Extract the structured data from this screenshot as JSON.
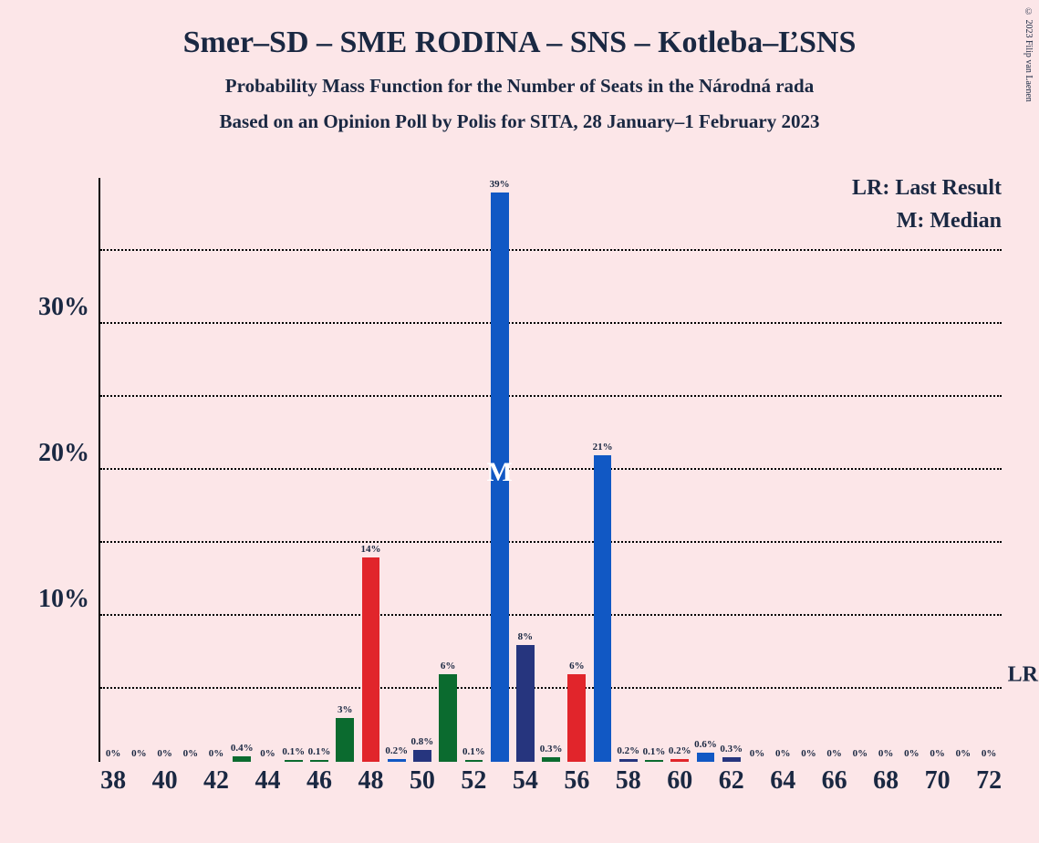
{
  "copyright": "© 2023 Filip van Laenen",
  "title": "Smer–SD – SME RODINA – SNS – Kotleba–ĽSNS",
  "subtitle1": "Probability Mass Function for the Number of Seats in the Národná rada",
  "subtitle2": "Based on an Opinion Poll by Polis for SITA, 28 January–1 February 2023",
  "chart": {
    "type": "bar",
    "background_color": "#fce6e8",
    "text_color": "#1a2842",
    "colors": {
      "green": "#0b6b2f",
      "red": "#e1252b",
      "blue": "#1158c4",
      "navy": "#26357e"
    },
    "ylim": [
      0,
      40
    ],
    "ytick_step": 5,
    "y_major_ticks": [
      10,
      20,
      30
    ],
    "y_gridlines": [
      5,
      10,
      15,
      20,
      25,
      30,
      35
    ],
    "lr_gridline_value": 5,
    "annotations": {
      "lr": "LR: Last Result",
      "m": "M: Median",
      "lr_short": "LR",
      "median_marker": "M"
    },
    "x_categories": [
      38,
      39,
      40,
      41,
      42,
      43,
      44,
      45,
      46,
      47,
      48,
      49,
      50,
      51,
      52,
      53,
      54,
      55,
      56,
      57,
      58,
      59,
      60,
      61,
      62,
      63,
      64,
      65,
      66,
      67,
      68,
      69,
      70,
      71,
      72
    ],
    "x_visible_labels": [
      38,
      40,
      42,
      44,
      46,
      48,
      50,
      52,
      54,
      56,
      58,
      60,
      62,
      64,
      66,
      68,
      70,
      72
    ],
    "bars": [
      {
        "x": 38,
        "pct": 0,
        "label": "0%",
        "color": "#0b6b2f"
      },
      {
        "x": 39,
        "pct": 0,
        "label": "0%",
        "color": "#0b6b2f"
      },
      {
        "x": 40,
        "pct": 0,
        "label": "0%",
        "color": "#0b6b2f"
      },
      {
        "x": 41,
        "pct": 0,
        "label": "0%",
        "color": "#0b6b2f"
      },
      {
        "x": 42,
        "pct": 0,
        "label": "0%",
        "color": "#0b6b2f"
      },
      {
        "x": 43,
        "pct": 0.4,
        "label": "0.4%",
        "color": "#0b6b2f"
      },
      {
        "x": 44,
        "pct": 0,
        "label": "0%",
        "color": "#0b6b2f"
      },
      {
        "x": 45,
        "pct": 0.1,
        "label": "0.1%",
        "color": "#0b6b2f"
      },
      {
        "x": 46,
        "pct": 0.1,
        "label": "0.1%",
        "color": "#0b6b2f"
      },
      {
        "x": 47,
        "pct": 3,
        "label": "3%",
        "color": "#0b6b2f"
      },
      {
        "x": 48,
        "pct": 14,
        "label": "14%",
        "color": "#e1252b"
      },
      {
        "x": 49,
        "pct": 0.2,
        "label": "0.2%",
        "color": "#1158c4"
      },
      {
        "x": 50,
        "pct": 0.8,
        "label": "0.8%",
        "color": "#26357e"
      },
      {
        "x": 51,
        "pct": 6,
        "label": "6%",
        "color": "#0b6b2f"
      },
      {
        "x": 52,
        "pct": 0.1,
        "label": "0.1%",
        "color": "#0b6b2f"
      },
      {
        "x": 53,
        "pct": 39,
        "label": "39%",
        "color": "#1158c4",
        "median": true
      },
      {
        "x": 54,
        "pct": 8,
        "label": "8%",
        "color": "#26357e"
      },
      {
        "x": 55,
        "pct": 0.3,
        "label": "0.3%",
        "color": "#0b6b2f"
      },
      {
        "x": 56,
        "pct": 6,
        "label": "6%",
        "color": "#e1252b"
      },
      {
        "x": 57,
        "pct": 21,
        "label": "21%",
        "color": "#1158c4"
      },
      {
        "x": 58,
        "pct": 0.2,
        "label": "0.2%",
        "color": "#26357e"
      },
      {
        "x": 59,
        "pct": 0.1,
        "label": "0.1%",
        "color": "#0b6b2f"
      },
      {
        "x": 60,
        "pct": 0.2,
        "label": "0.2%",
        "color": "#e1252b"
      },
      {
        "x": 61,
        "pct": 0.6,
        "label": "0.6%",
        "color": "#1158c4"
      },
      {
        "x": 62,
        "pct": 0.3,
        "label": "0.3%",
        "color": "#26357e"
      },
      {
        "x": 63,
        "pct": 0,
        "label": "0%",
        "color": "#0b6b2f"
      },
      {
        "x": 64,
        "pct": 0,
        "label": "0%",
        "color": "#0b6b2f"
      },
      {
        "x": 65,
        "pct": 0,
        "label": "0%",
        "color": "#0b6b2f"
      },
      {
        "x": 66,
        "pct": 0,
        "label": "0%",
        "color": "#0b6b2f"
      },
      {
        "x": 67,
        "pct": 0,
        "label": "0%",
        "color": "#0b6b2f"
      },
      {
        "x": 68,
        "pct": 0,
        "label": "0%",
        "color": "#0b6b2f"
      },
      {
        "x": 69,
        "pct": 0,
        "label": "0%",
        "color": "#0b6b2f"
      },
      {
        "x": 70,
        "pct": 0,
        "label": "0%",
        "color": "#0b6b2f"
      },
      {
        "x": 71,
        "pct": 0,
        "label": "0%",
        "color": "#0b6b2f"
      },
      {
        "x": 72,
        "pct": 0,
        "label": "0%",
        "color": "#0b6b2f"
      }
    ]
  }
}
